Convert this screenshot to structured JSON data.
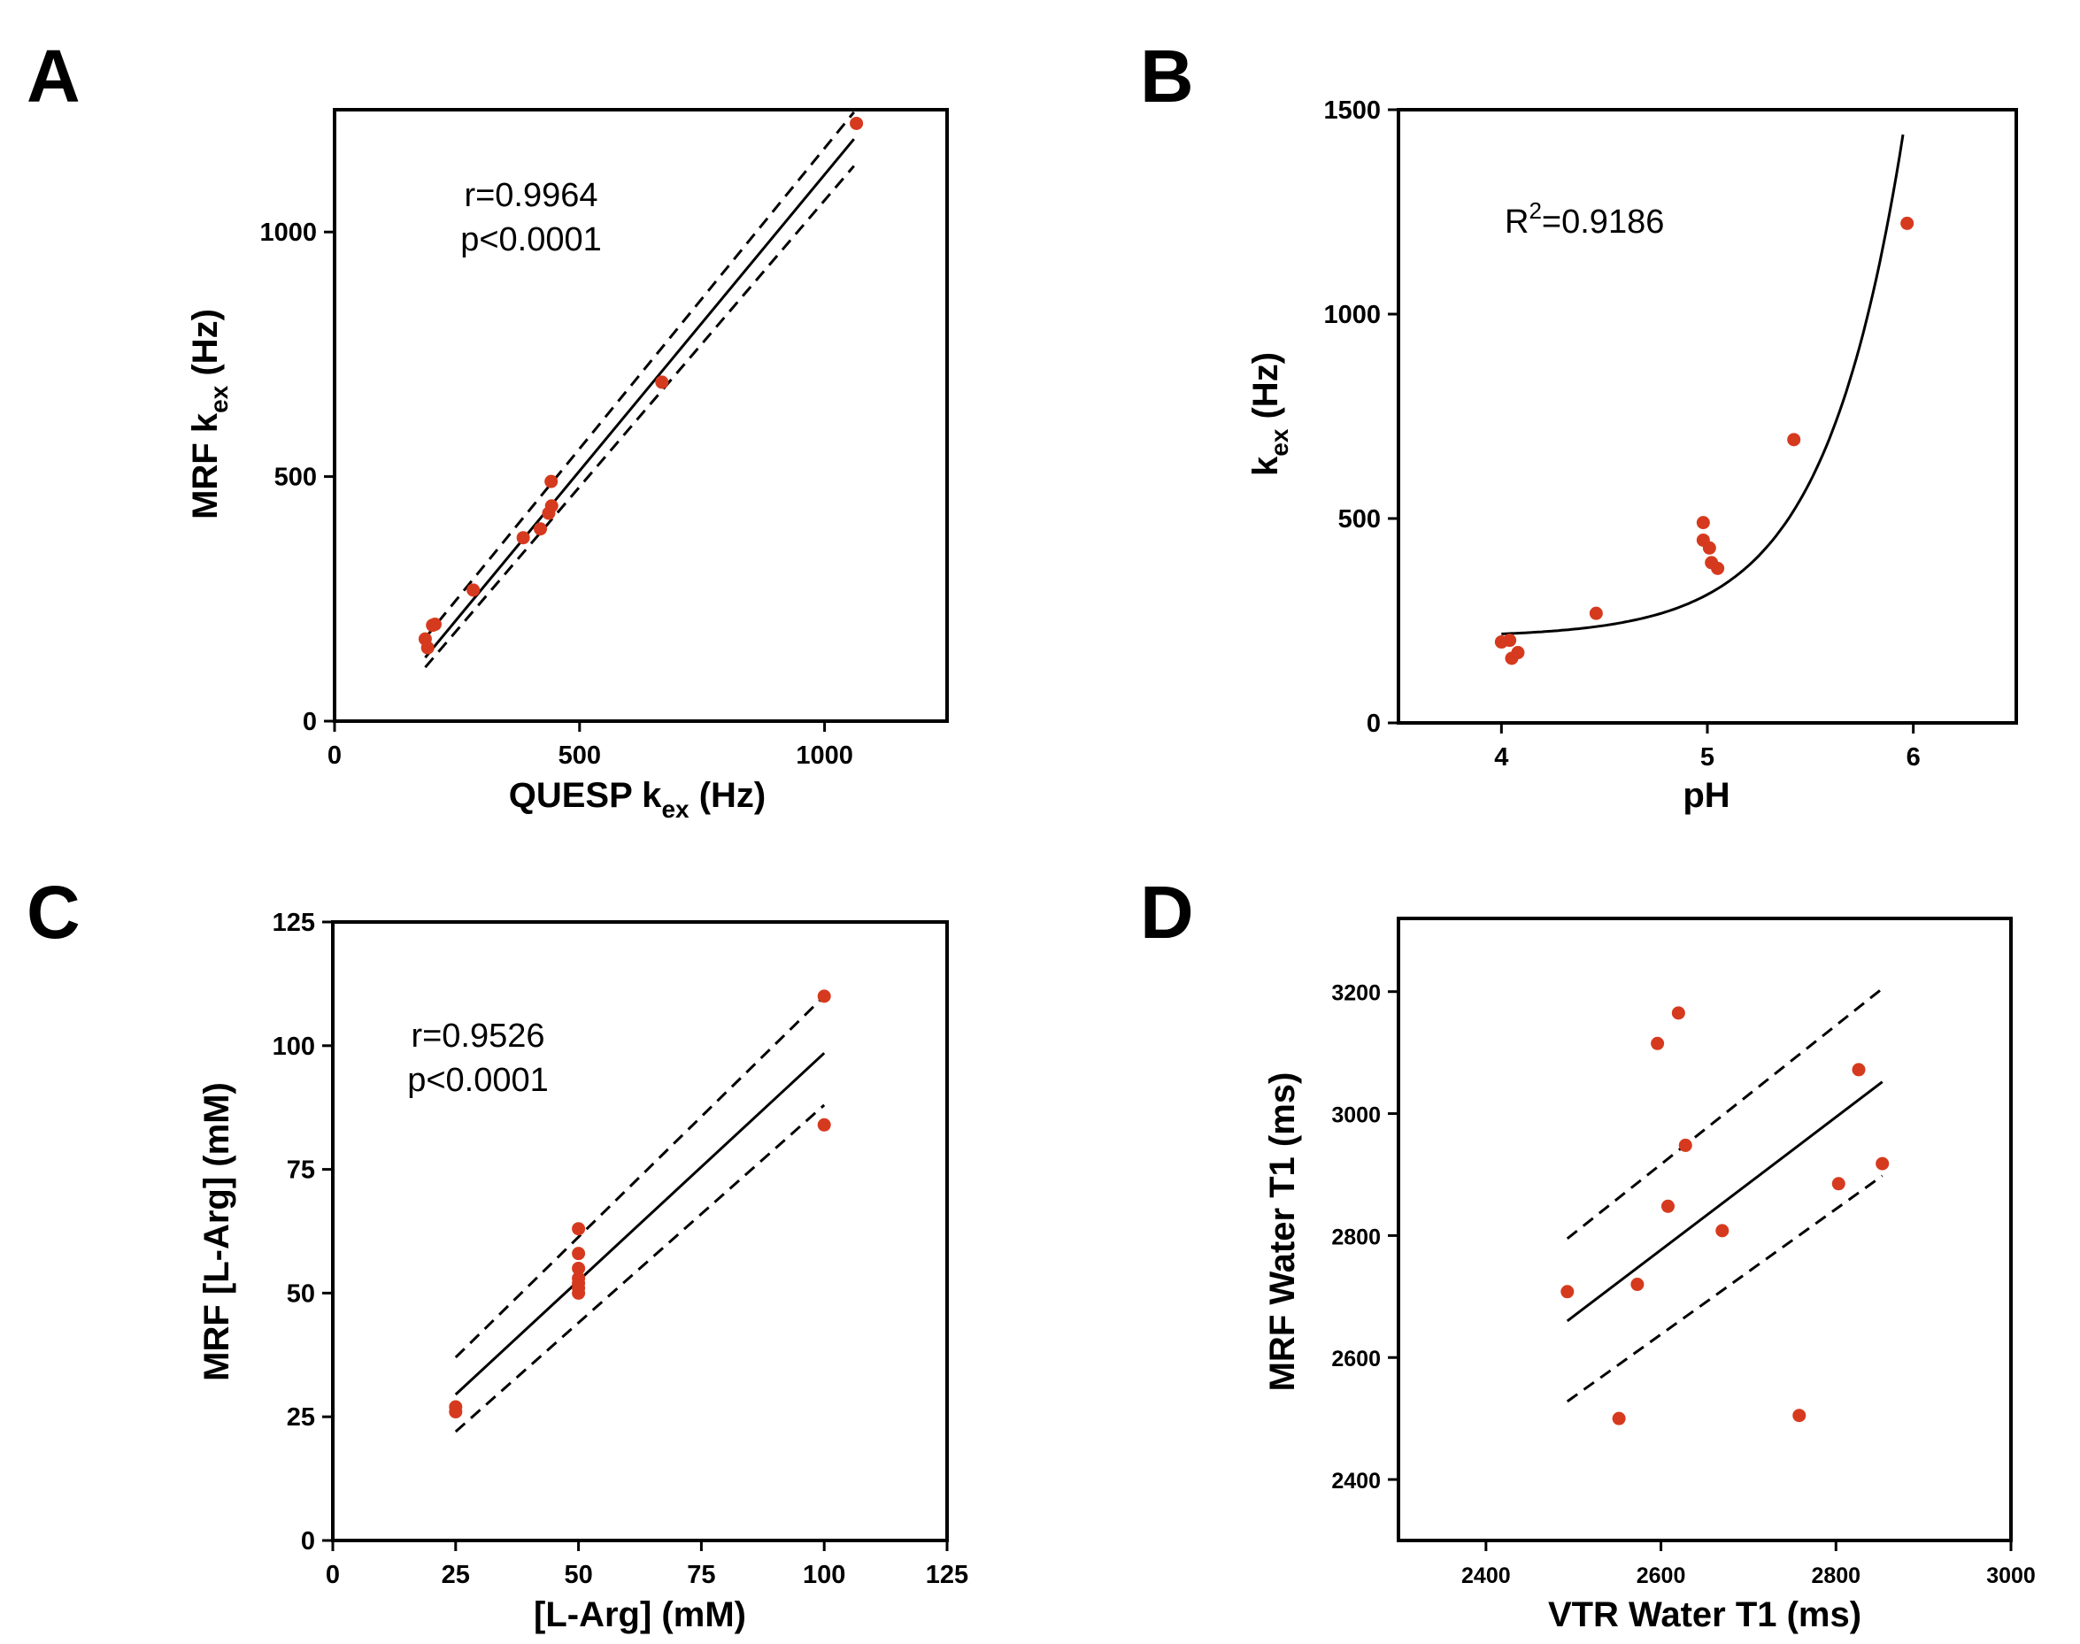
{
  "chart_data": [
    {
      "panel": "A",
      "type": "scatter",
      "xlabel_main": "QUESP k",
      "xlabel_sub": "ex",
      "xlabel_tail": " (Hz)",
      "ylabel_main": "MRF k",
      "ylabel_sub": "ex",
      "ylabel_tail": " (Hz)",
      "xlim": [
        0,
        1250
      ],
      "ylim": [
        0,
        1250
      ],
      "xticks": [
        0,
        500,
        1000
      ],
      "yticks": [
        0,
        500,
        1000
      ],
      "annotation": [
        "r=0.9964",
        "p<0.0001"
      ],
      "points": [
        [
          185,
          168
        ],
        [
          190,
          150
        ],
        [
          200,
          196
        ],
        [
          205,
          198
        ],
        [
          283,
          268
        ],
        [
          385,
          375
        ],
        [
          420,
          393
        ],
        [
          437,
          425
        ],
        [
          443,
          440
        ],
        [
          442,
          490
        ],
        [
          668,
          693
        ],
        [
          1065,
          1222
        ]
      ],
      "fit_line": [
        [
          185,
          130
        ],
        [
          1060,
          1190
        ]
      ],
      "ci_upper": [
        [
          185,
          170
        ],
        [
          1060,
          1245
        ]
      ],
      "ci_lower": [
        [
          185,
          110
        ],
        [
          1060,
          1135
        ]
      ]
    },
    {
      "panel": "B",
      "type": "scatter",
      "xlabel_main": "pH",
      "ylabel_main": "k",
      "ylabel_sub": "ex",
      "ylabel_tail": " (Hz)",
      "xlim": [
        3.5,
        6.5
      ],
      "ylim": [
        0,
        1500
      ],
      "xticks": [
        4,
        5,
        6
      ],
      "yticks": [
        0,
        500,
        1000,
        1500
      ],
      "annotation_main": "R",
      "annotation_sup": "2",
      "annotation_tail": "=0.9186",
      "points": [
        [
          4.0,
          198
        ],
        [
          4.04,
          202
        ],
        [
          4.05,
          158
        ],
        [
          4.08,
          172
        ],
        [
          4.46,
          268
        ],
        [
          4.98,
          490
        ],
        [
          4.98,
          447
        ],
        [
          5.01,
          428
        ],
        [
          5.02,
          392
        ],
        [
          5.05,
          378
        ],
        [
          5.42,
          693
        ],
        [
          5.97,
          1222
        ]
      ],
      "curve": {
        "model": "exponential",
        "a": 210,
        "b": 0.000235,
        "k": 2.6,
        "x_from": 4.0,
        "x_to": 5.95
      }
    },
    {
      "panel": "C",
      "type": "scatter",
      "xlabel_main": "[L-Arg] (mM)",
      "ylabel_main": "MRF [L-Arg] (mM)",
      "xlim": [
        0,
        125
      ],
      "ylim": [
        0,
        125
      ],
      "xticks": [
        0,
        25,
        50,
        75,
        100,
        125
      ],
      "yticks": [
        0,
        25,
        50,
        75,
        100,
        125
      ],
      "annotation": [
        "r=0.9526",
        "p<0.0001"
      ],
      "points": [
        [
          25,
          26
        ],
        [
          25,
          27
        ],
        [
          50,
          63
        ],
        [
          50,
          58
        ],
        [
          50,
          55
        ],
        [
          50,
          53
        ],
        [
          50,
          52
        ],
        [
          50,
          51
        ],
        [
          50,
          50
        ],
        [
          100,
          110
        ],
        [
          100,
          84
        ]
      ],
      "fit_line": [
        [
          25,
          29.5
        ],
        [
          100,
          98.5
        ]
      ],
      "ci_upper": [
        [
          25,
          37
        ],
        [
          100,
          110
        ]
      ],
      "ci_lower": [
        [
          25,
          22
        ],
        [
          100,
          88
        ]
      ]
    },
    {
      "panel": "D",
      "type": "scatter",
      "xlabel_main": "VTR Water T1 (ms)",
      "ylabel_main": "MRF Water T1 (ms)",
      "xlim": [
        2300,
        3000
      ],
      "ylim": [
        2300,
        3320
      ],
      "xticks": [
        2400,
        2600,
        2800,
        3000
      ],
      "yticks": [
        2400,
        2600,
        2800,
        3000,
        3200
      ],
      "annotation": [],
      "points": [
        [
          2493,
          2708
        ],
        [
          2552,
          2500
        ],
        [
          2573,
          2720
        ],
        [
          2596,
          3115
        ],
        [
          2608,
          2848
        ],
        [
          2620,
          3165
        ],
        [
          2628,
          2948
        ],
        [
          2670,
          2808
        ],
        [
          2758,
          2505
        ],
        [
          2803,
          2885
        ],
        [
          2826,
          3072
        ],
        [
          2853,
          2918
        ]
      ],
      "fit_line": [
        [
          2493,
          2660
        ],
        [
          2853,
          3052
        ]
      ],
      "ci_upper": [
        [
          2493,
          2795
        ],
        [
          2853,
          3205
        ]
      ],
      "ci_lower": [
        [
          2493,
          2528
        ],
        [
          2853,
          2898
        ]
      ]
    }
  ],
  "panel_letters": [
    "A",
    "B",
    "C",
    "D"
  ],
  "point_color": "#d63a1e"
}
